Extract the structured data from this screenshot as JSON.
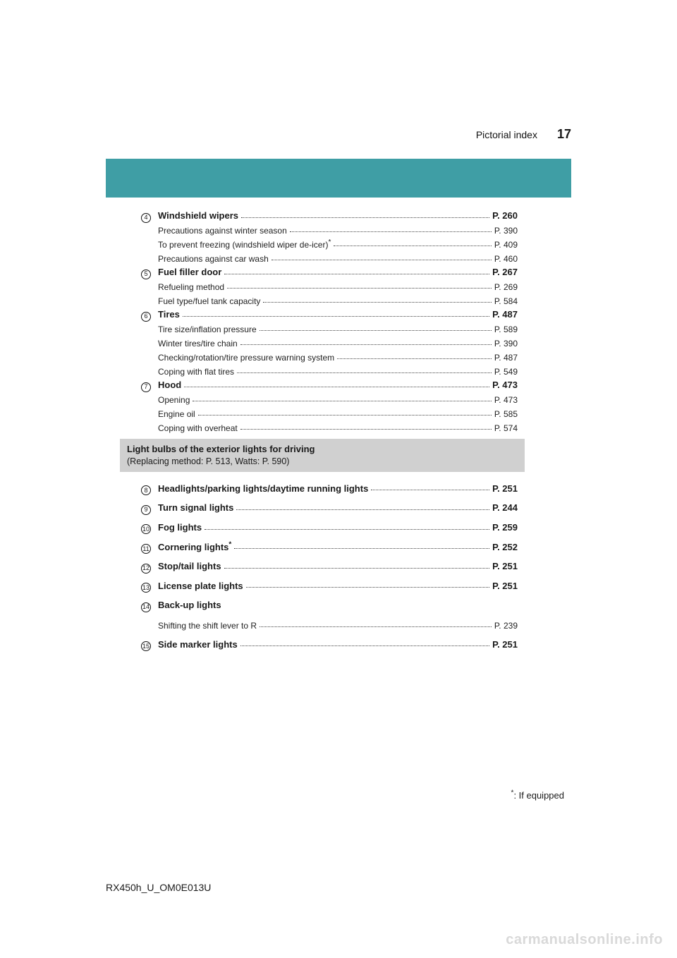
{
  "header": {
    "section": "Pictorial index",
    "page_number": "17"
  },
  "colors": {
    "teal": "#3f9ea5",
    "gray_box": "#d0d0d0",
    "watermark": "#d9d9d9"
  },
  "items_a": [
    {
      "num": "4",
      "label": "Windshield wipers",
      "page": "P. 260",
      "subs": [
        {
          "label": "Precautions against winter season",
          "page": "P. 390"
        },
        {
          "label": "To prevent freezing (windshield wiper de-icer)",
          "star": true,
          "page": "P. 409"
        },
        {
          "label": "Precautions against car wash",
          "page": "P. 460"
        }
      ]
    },
    {
      "num": "5",
      "label": "Fuel filler door",
      "page": "P. 267",
      "subs": [
        {
          "label": "Refueling method",
          "page": "P. 269"
        },
        {
          "label": "Fuel type/fuel tank capacity",
          "page": "P. 584"
        }
      ]
    },
    {
      "num": "6",
      "label": "Tires",
      "page": "P. 487",
      "subs": [
        {
          "label": "Tire size/inflation pressure",
          "page": "P. 589"
        },
        {
          "label": "Winter tires/tire chain",
          "page": "P. 390"
        },
        {
          "label": "Checking/rotation/tire pressure warning system",
          "page": "P. 487"
        },
        {
          "label": "Coping with flat tires",
          "page": "P. 549"
        }
      ]
    },
    {
      "num": "7",
      "label": "Hood",
      "page": "P. 473",
      "subs": [
        {
          "label": "Opening",
          "page": "P. 473"
        },
        {
          "label": "Engine oil",
          "page": "P. 585"
        },
        {
          "label": "Coping with overheat",
          "page": "P. 574"
        }
      ]
    }
  ],
  "gray_box": {
    "title": "Light bulbs of the exterior lights for driving",
    "subtitle": "(Replacing method: P. 513, Watts: P. 590)"
  },
  "items_b": [
    {
      "num": "8",
      "label": "Headlights/parking lights/daytime running lights",
      "page": "P. 251"
    },
    {
      "num": "9",
      "label": "Turn signal lights",
      "page": "P. 244"
    },
    {
      "num": "10",
      "label": "Fog lights",
      "page": "P. 259"
    },
    {
      "num": "11",
      "label": "Cornering lights",
      "star": true,
      "page": "P. 252"
    },
    {
      "num": "12",
      "label": "Stop/tail lights",
      "page": "P. 251"
    },
    {
      "num": "13",
      "label": "License plate lights",
      "page": "P. 251"
    },
    {
      "num": "14",
      "label": "Back-up lights",
      "no_page": true,
      "subs": [
        {
          "label": "Shifting the shift lever to R",
          "page": "P. 239"
        }
      ]
    },
    {
      "num": "15",
      "label": "Side marker lights",
      "page": "P. 251"
    }
  ],
  "footnote": {
    "star": "*",
    "text": ": If equipped"
  },
  "doc_code": "RX450h_U_OM0E013U",
  "watermark": "carmanualsonline.info"
}
